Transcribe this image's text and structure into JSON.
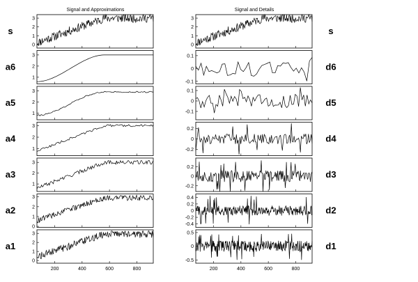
{
  "chart_data": [
    {
      "type": "line",
      "title": "Signal and Approximations",
      "xlabel": "",
      "ylabel": "",
      "xlim": [
        70,
        920
      ],
      "xticks": [
        200,
        400,
        600,
        800
      ],
      "grid": false,
      "panels": [
        {
          "name": "s",
          "ylim": [
            -0.4,
            3.4
          ],
          "yticks": [
            0,
            1,
            2,
            3
          ],
          "profile": "ramp",
          "start": 0.2,
          "end": 3.0,
          "noise": 0.5,
          "points": 220
        },
        {
          "name": "a6",
          "ylim": [
            0.4,
            3.4
          ],
          "yticks": [
            1,
            2,
            3
          ],
          "profile": "smooth",
          "start": 0.6,
          "end": 3.0,
          "noise": 0.0,
          "points": 60
        },
        {
          "name": "a5",
          "ylim": [
            0.4,
            3.4
          ],
          "yticks": [
            1,
            2,
            3
          ],
          "profile": "smooth",
          "start": 0.8,
          "end": 2.9,
          "noise": 0.06,
          "points": 80
        },
        {
          "name": "a4",
          "ylim": [
            0.4,
            3.3
          ],
          "yticks": [
            1,
            2,
            3
          ],
          "profile": "ramp",
          "start": 0.8,
          "end": 3.0,
          "noise": 0.1,
          "points": 110
        },
        {
          "name": "a3",
          "ylim": [
            0.3,
            3.4
          ],
          "yticks": [
            1,
            2,
            3
          ],
          "profile": "ramp",
          "start": 0.6,
          "end": 3.0,
          "noise": 0.18,
          "points": 150
        },
        {
          "name": "a2",
          "ylim": [
            -0.1,
            3.3
          ],
          "yticks": [
            0,
            1,
            2,
            3
          ],
          "profile": "ramp",
          "start": 0.6,
          "end": 2.9,
          "noise": 0.28,
          "points": 190
        },
        {
          "name": "a1",
          "ylim": [
            -0.3,
            3.4
          ],
          "yticks": [
            0,
            1,
            2,
            3
          ],
          "profile": "ramp",
          "start": 0.4,
          "end": 2.9,
          "noise": 0.4,
          "points": 220
        }
      ]
    },
    {
      "type": "line",
      "title": "Signal and Details",
      "xlabel": "",
      "ylabel": "",
      "xlim": [
        70,
        920
      ],
      "xticks": [
        200,
        400,
        600,
        800
      ],
      "grid": false,
      "panels": [
        {
          "name": "s",
          "ylim": [
            -0.4,
            3.4
          ],
          "yticks": [
            0,
            1,
            2,
            3
          ],
          "profile": "ramp",
          "start": 0.2,
          "end": 3.0,
          "noise": 0.5,
          "points": 220
        },
        {
          "name": "d6",
          "ylim": [
            -0.12,
            0.14
          ],
          "yticks": [
            -0.1,
            0,
            0.1
          ],
          "profile": "noise",
          "amp": 0.06,
          "spike": 0.11,
          "points": 45
        },
        {
          "name": "d5",
          "ylim": [
            -0.18,
            0.14
          ],
          "yticks": [
            -0.1,
            0,
            0.1
          ],
          "profile": "noise",
          "amp": 0.07,
          "spike": 0.13,
          "points": 70
        },
        {
          "name": "d4",
          "ylim": [
            -0.32,
            0.32
          ],
          "yticks": [
            -0.2,
            0,
            0.2
          ],
          "profile": "noise",
          "amp": 0.1,
          "spike": 0.3,
          "points": 130
        },
        {
          "name": "d3",
          "ylim": [
            -0.32,
            0.38
          ],
          "yticks": [
            -0.2,
            0,
            0.2
          ],
          "profile": "noise",
          "amp": 0.12,
          "spike": 0.33,
          "points": 200
        },
        {
          "name": "d2",
          "ylim": [
            -0.5,
            0.5
          ],
          "yticks": [
            -0.4,
            -0.2,
            0,
            0.2,
            0.4
          ],
          "profile": "noise",
          "amp": 0.15,
          "spike": 0.45,
          "points": 260
        },
        {
          "name": "d1",
          "ylim": [
            -0.62,
            0.6
          ],
          "yticks": [
            -0.5,
            0,
            0.5
          ],
          "profile": "noise",
          "amp": 0.2,
          "spike": 0.5,
          "points": 320
        }
      ]
    }
  ]
}
